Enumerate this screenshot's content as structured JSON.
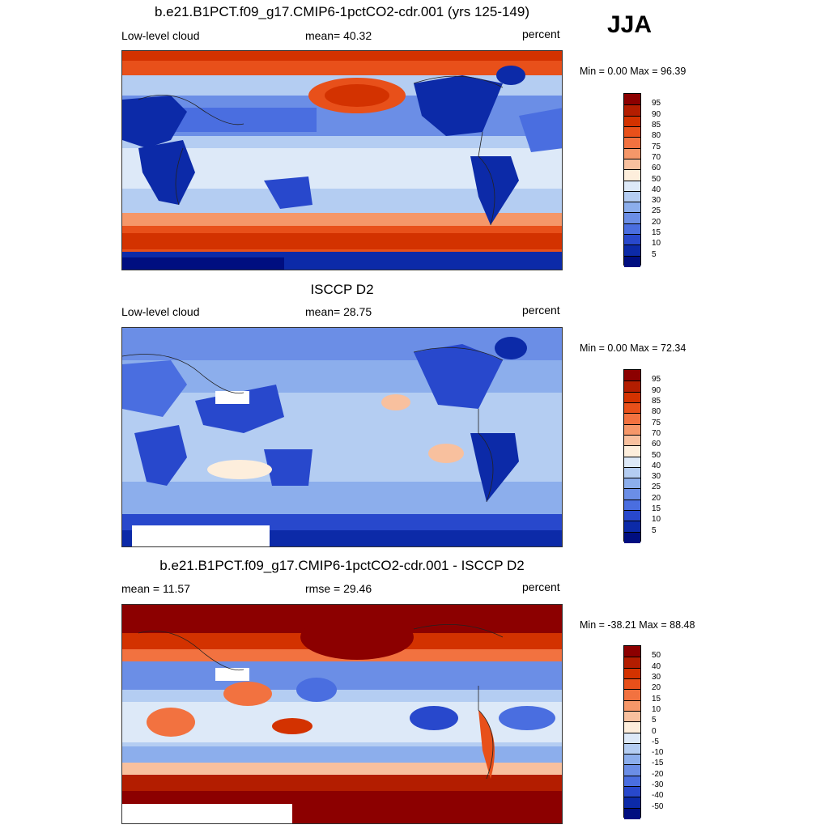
{
  "season": "JJA",
  "panels": [
    {
      "title": "b.e21.B1PCT.f09_g17.CMIP6-1pctCO2-cdr.001 (yrs 125-149)",
      "left_label": "Low-level cloud",
      "center_label": "mean=  40.32",
      "right_label": "percent",
      "minmax": "Min =   0.00 Max =  96.39",
      "colorbar_labels": [
        "95",
        "90",
        "85",
        "80",
        "75",
        "70",
        "60",
        "50",
        "40",
        "30",
        "25",
        "20",
        "15",
        "10",
        "5"
      ],
      "map_icon": "cloud-fraction-map"
    },
    {
      "title": "ISCCP D2",
      "left_label": "Low-level cloud",
      "center_label": "mean=  28.75",
      "right_label": "percent",
      "minmax": "Min =   0.00 Max =  72.34",
      "colorbar_labels": [
        "95",
        "90",
        "85",
        "80",
        "75",
        "70",
        "60",
        "50",
        "40",
        "30",
        "25",
        "20",
        "15",
        "10",
        "5"
      ],
      "map_icon": "cloud-fraction-map"
    },
    {
      "title": "b.e21.B1PCT.f09_g17.CMIP6-1pctCO2-cdr.001 - ISCCP D2",
      "left_label": "mean =  11.57",
      "center_label": "rmse =  29.46",
      "right_label": "percent",
      "minmax": "Min = -38.21 Max =  88.48",
      "colorbar_labels": [
        "50",
        "40",
        "30",
        "20",
        "15",
        "10",
        "5",
        "0",
        "-5",
        "-10",
        "-15",
        "-20",
        "-30",
        "-40",
        "-50"
      ],
      "map_icon": "difference-map"
    }
  ],
  "colors": {
    "colorbar": [
      "#8c0000",
      "#b31d00",
      "#d33200",
      "#e8501a",
      "#f27240",
      "#f59769",
      "#f8c09e",
      "#fdeedc",
      "#dde9f8",
      "#b4cdf2",
      "#8caeec",
      "#6b8ee6",
      "#4a6ee0",
      "#2848cc",
      "#0c2aa8",
      "#000e80"
    ]
  }
}
